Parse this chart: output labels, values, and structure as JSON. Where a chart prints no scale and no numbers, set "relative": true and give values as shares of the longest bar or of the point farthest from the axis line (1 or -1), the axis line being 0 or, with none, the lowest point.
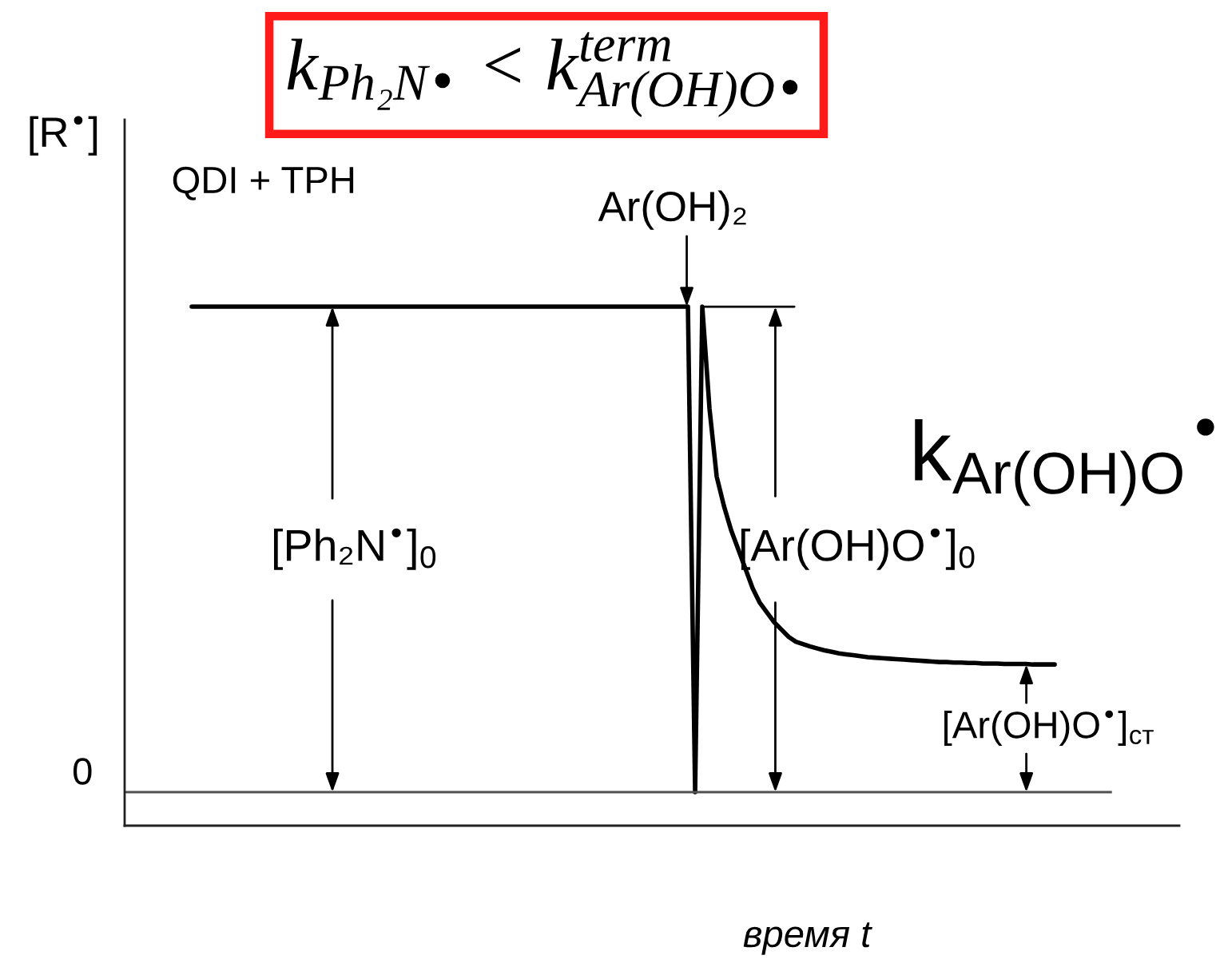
{
  "chart_data": {
    "type": "line",
    "title": "k$_{Ph₂N•}$ < k$^{term}$$_{Ar(OH)O•}$",
    "xlabel": "время t",
    "ylabel": "[R$^{•}$]",
    "relative": true,
    "categories": [
      null,
      null,
      null,
      null,
      null,
      null,
      null,
      null,
      null,
      null,
      null,
      null,
      null,
      null,
      null,
      null,
      null,
      null,
      null,
      null,
      null,
      null,
      null,
      null,
      null,
      null,
      null,
      null,
      null,
      null,
      null,
      null,
      null,
      null,
      null,
      null,
      null,
      null,
      null,
      null,
      null,
      null,
      null,
      null,
      null,
      null,
      null,
      null,
      null,
      null,
      null,
      null,
      null,
      null,
      null,
      null,
      null,
      null,
      null,
      null,
      null,
      null,
      null,
      null,
      null,
      null,
      null,
      null,
      null,
      null,
      null,
      null,
      null,
      null,
      null,
      null,
      null,
      null,
      null,
      null,
      null,
      null,
      null,
      null,
      null,
      null,
      null,
      null,
      null,
      null,
      null,
      null,
      null,
      null,
      null,
      null,
      null,
      null,
      null,
      null,
      null,
      null,
      null,
      null,
      null,
      null,
      null,
      null,
      null,
      null,
      null,
      null,
      null,
      null,
      null,
      null,
      null,
      null,
      null,
      null,
      null
    ],
    "series": [
      {
        "color": "#000000",
        "values": [
          1,
          1,
          1,
          1,
          1,
          1,
          1,
          1,
          1,
          1,
          1,
          1,
          1,
          1,
          1,
          1,
          1,
          1,
          1,
          1,
          1,
          1,
          1,
          1,
          1,
          1,
          1,
          1,
          1,
          1,
          1,
          1,
          1,
          1,
          1,
          1,
          1,
          1,
          1,
          1,
          1,
          1,
          1,
          1,
          1,
          1,
          1,
          1,
          1,
          1,
          1,
          1,
          1,
          1,
          1,
          1,
          1,
          1,
          1,
          1,
          1,
          1,
          1,
          1,
          1,
          1,
          1,
          1,
          1,
          1,
          0,
          1,
          0.79,
          0.65,
          0.59,
          0.54,
          0.5,
          0.46,
          0.42,
          0.39,
          0.37,
          0.35,
          0.335,
          0.32,
          0.31,
          0.305,
          0.3,
          0.296,
          0.292,
          0.289,
          0.286,
          0.284,
          0.282,
          0.28,
          0.278,
          0.277,
          0.276,
          0.275,
          0.274,
          0.273,
          0.272,
          0.271,
          0.27,
          0.269,
          0.268,
          0.268,
          0.267,
          0.267,
          0.266,
          0.266,
          0.265,
          0.265,
          0.265,
          0.264,
          0.264,
          0.264,
          0.264,
          0.263,
          0.263,
          0.263,
          0.263
        ]
      }
    ],
    "ref_lines": [
      {
        "axis": "y",
        "value": 0,
        "label": "0",
        "color": "#505050"
      }
    ],
    "annotations": [
      "QDI + TPH",
      {
        "text": "Ar(OH)₂",
        "y": 1
      },
      "[Ph₂N$^{•}$]$_{0}$",
      "[Ar(OH)O$^{•}$]$_{0}$",
      "[Ar(OH)O$^{•}$]$_{ст}$",
      "k$_{Ar(OH)O}$$^{•}$"
    ]
  }
}
